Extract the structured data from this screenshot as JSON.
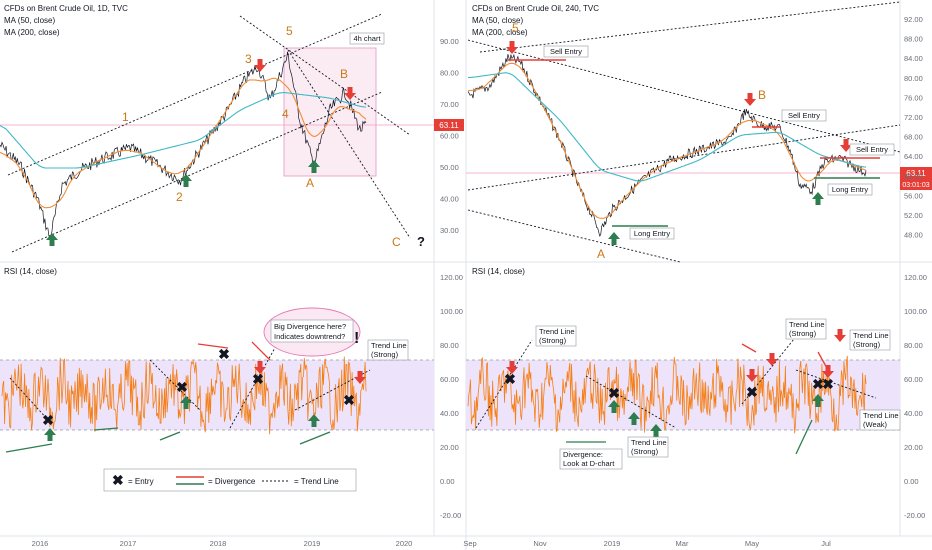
{
  "charts": {
    "left": {
      "title": "CFDs on Brent Crude Oil, 1D, TVC",
      "ma50": "MA (50, close)",
      "ma200": "MA (200, close)",
      "rsi_title": "RSI (14, close)",
      "box_label": "4h chart",
      "price_tag": "63.11",
      "price_axis": [
        "90.00",
        "80.00",
        "70.00",
        "60.00",
        "50.00",
        "40.00",
        "30.00"
      ],
      "rsi_axis": [
        "120.00",
        "100.00",
        "80.00",
        "60.00",
        "40.00",
        "20.00",
        "0.00",
        "-20.00"
      ],
      "time_axis": [
        "2016",
        "2017",
        "2018",
        "2019",
        "2020"
      ],
      "waves": [
        "1",
        "2",
        "3",
        "4",
        "5",
        "A",
        "B",
        "C"
      ],
      "question": "?",
      "divergence_note": [
        "Big Divergence here?",
        "Indicates downtrend?"
      ],
      "exclaim": "!",
      "trendline_note": [
        "Trend Line",
        "(Strong)"
      ],
      "legend": {
        "entry": "= Entry",
        "divergence": "= Divergence",
        "trend": "= Trend Line"
      }
    },
    "right": {
      "title": "CFDs on Brent Crude Oil, 240, TVC",
      "ma50": "MA (50, close)",
      "ma200": "MA (200, close)",
      "rsi_title": "RSI (14, close)",
      "price_tag": "63.11",
      "time_tag": "03:01:03",
      "price_axis": [
        "92.00",
        "88.00",
        "84.00",
        "80.00",
        "76.00",
        "72.00",
        "68.00",
        "64.00",
        "60.00",
        "56.00",
        "52.00",
        "48.00"
      ],
      "rsi_axis": [
        "120.00",
        "100.00",
        "80.00",
        "60.00",
        "40.00",
        "20.00",
        "0.00",
        "-20.00"
      ],
      "time_axis": [
        "Sep",
        "Nov",
        "2019",
        "Mar",
        "May",
        "Jul"
      ],
      "waves": [
        "5",
        "B",
        "A"
      ],
      "notes": {
        "sell1": "Sell Entry",
        "sell2": "Sell Entry",
        "sell3": "Sell Entry",
        "long1": "Long Entry",
        "long2": "Long Entry",
        "tl1": [
          "Trend Line",
          "(Strong)"
        ],
        "tl2": [
          "Trend Line",
          "(Strong)"
        ],
        "tl3": [
          "Trend Line",
          "(Strong)"
        ],
        "tl4": [
          "Trend Line",
          "(Strong)"
        ],
        "tl5": [
          "Trend Line",
          "(Weak)"
        ],
        "div": [
          "Divergence:",
          "Look at D-chart"
        ]
      }
    }
  },
  "colors": {
    "price": "#131722",
    "ma50": "#f28d35",
    "ma200": "#3fb8c7",
    "rsi": "#f57f17",
    "rsi_band": "#ede3fa",
    "pink": "#f49bc0",
    "red": "#e63e36",
    "green": "#2e7d4f",
    "wave": "#c77a1a"
  }
}
